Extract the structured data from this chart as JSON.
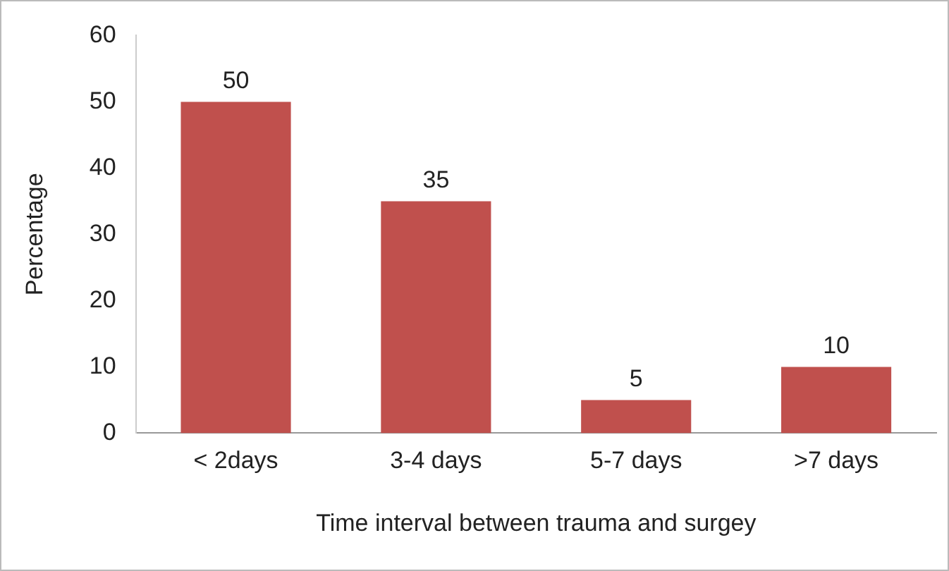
{
  "chart_data": {
    "type": "bar",
    "xlabel": "Time interval between trauma and surgey",
    "ylabel": "Percentage",
    "categories": [
      "< 2days",
      "3-4 days",
      "5-7 days",
      ">7 days"
    ],
    "values": [
      50,
      35,
      5,
      10
    ],
    "color": "#c0504d",
    "ylim": [
      0,
      60
    ],
    "yticks": [
      0,
      10,
      20,
      30,
      40,
      50,
      60
    ],
    "grid": false,
    "legend": false,
    "data_labels": true
  }
}
